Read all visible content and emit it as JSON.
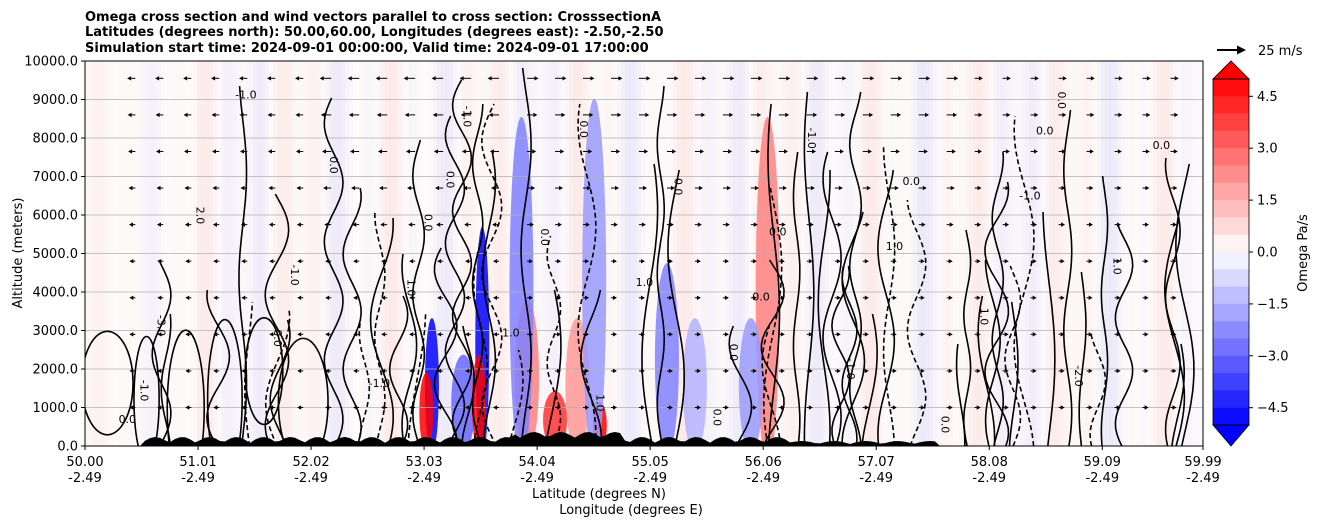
{
  "chart_data": {
    "type": "heatmap",
    "title_lines": [
      "Omega cross section and wind vectors parallel to cross section: CrosssectionA",
      "Latitudes (degrees north): 50.00,60.00, Longitudes (degrees east): -2.50,-2.50",
      "Simulation start time: 2024-09-01 00:00:00, Valid time: 2024-09-01 17:00:00"
    ],
    "ylabel": "Altitude (meters)",
    "xlabel_line1": "Latitude (degrees N)",
    "xlabel_line2": "Longitude (degrees E)",
    "ylim": [
      0,
      10000
    ],
    "xlim": [
      50.0,
      59.99
    ],
    "y_ticks": [
      0,
      1000,
      2000,
      3000,
      4000,
      5000,
      6000,
      7000,
      8000,
      9000,
      10000
    ],
    "y_tick_labels": [
      "0.0",
      "1000.0",
      "2000.0",
      "3000.0",
      "4000.0",
      "5000.0",
      "6000.0",
      "7000.0",
      "8000.0",
      "9000.0",
      "10000.0"
    ],
    "x_ticks": [
      50.0,
      51.01,
      52.02,
      53.03,
      54.04,
      55.05,
      56.06,
      57.07,
      58.08,
      59.09,
      59.99
    ],
    "x_tick_lat_labels": [
      "50.00",
      "51.01",
      "52.02",
      "53.03",
      "54.04",
      "55.05",
      "56.06",
      "57.07",
      "58.08",
      "59.09",
      "59.99"
    ],
    "x_tick_lon_labels": [
      "-2.49",
      "-2.49",
      "-2.49",
      "-2.49",
      "-2.49",
      "-2.49",
      "-2.49",
      "-2.49",
      "-2.49",
      "-2.49",
      "-2.49"
    ],
    "grid": "horizontal",
    "colorbar": {
      "label": "Omega Pa/s",
      "range": [
        -5.0,
        5.0
      ],
      "extend": "both",
      "ticks": [
        4.5,
        3.0,
        1.5,
        0.0,
        -1.5,
        -3.0,
        -4.5
      ],
      "tick_labels": [
        "4.5",
        "3.0",
        "1.5",
        "0.0",
        "−1.5",
        "−3.0",
        "−4.5"
      ]
    },
    "quiver_key_label": "25 m/s",
    "features": [
      {
        "lat": 53.1,
        "alt_top": 3500,
        "omega": -5.0
      },
      {
        "lat": 53.05,
        "alt_top": 2000,
        "omega": 5.0
      },
      {
        "lat": 53.38,
        "alt_top": 2500,
        "omega": -3.0
      },
      {
        "lat": 53.55,
        "alt_top": 6000,
        "omega": -5.0
      },
      {
        "lat": 53.52,
        "alt_top": 2500,
        "omega": 5.0
      },
      {
        "lat": 53.95,
        "alt_top": 4000,
        "omega": 2.5
      },
      {
        "lat": 54.2,
        "alt_top": 1500,
        "omega": 4.0
      },
      {
        "lat": 54.6,
        "alt_top": 1200,
        "omega": 5.0
      },
      {
        "lat": 54.4,
        "alt_top": 3500,
        "omega": 2.0
      },
      {
        "lat": 54.55,
        "alt_top": 9500,
        "omega": -2.0
      },
      {
        "lat": 55.2,
        "alt_top": 5000,
        "omega": -2.5
      },
      {
        "lat": 55.45,
        "alt_top": 3500,
        "omega": -1.5
      },
      {
        "lat": 56.1,
        "alt_top": 9000,
        "omega": 2.5
      },
      {
        "lat": 55.95,
        "alt_top": 3500,
        "omega": -2.0
      },
      {
        "lat": 53.9,
        "alt_top": 9000,
        "omega": -2.5
      }
    ],
    "contour_labels": [
      "0.0",
      "0.0",
      "0.0",
      "0.0",
      "-1.0",
      "1.0",
      "0.0",
      "-3.0",
      "-1.0",
      "0.0",
      "-2.0",
      "0.0",
      "1.0",
      "0.0",
      "2.0",
      "1.0",
      "-1.0",
      "1.0",
      "-1.0",
      "0.0",
      "1.0",
      "-1.0",
      "0.0",
      "-1.0",
      "0.0",
      "1.0",
      "0.0",
      "-1.0",
      "0.0",
      "0.0",
      "1.0",
      "-1.0",
      "0.0",
      "0.0",
      "0.0"
    ]
  }
}
